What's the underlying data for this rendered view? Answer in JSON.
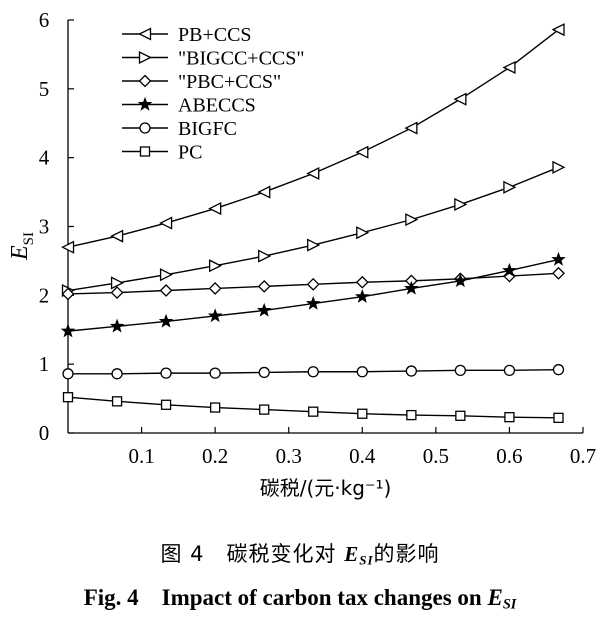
{
  "chart_data": {
    "type": "line",
    "xlabel": "碳税/(元·kg⁻¹)",
    "ylabel_symbol": "E",
    "ylabel_subscript": "SI",
    "xlim": [
      0,
      0.7
    ],
    "ylim": [
      0,
      6
    ],
    "xticks": [
      0.1,
      0.2,
      0.3,
      0.4,
      0.5,
      0.6,
      0.7
    ],
    "xtick_labels": [
      "0.1",
      "0.2",
      "0.3",
      "0.4",
      "0.5",
      "0.6",
      "0.7"
    ],
    "yticks": [
      0,
      1,
      2,
      3,
      4,
      5,
      6
    ],
    "ytick_labels": [
      "0",
      "1",
      "2",
      "3",
      "4",
      "5",
      "6"
    ],
    "grid": false,
    "legend_position": "top-left",
    "x": [
      0,
      0.0667,
      0.1333,
      0.2,
      0.2667,
      0.3333,
      0.4,
      0.4667,
      0.5333,
      0.6,
      0.6667
    ],
    "series": [
      {
        "name": "PB+CCS",
        "marker": "triangle-left",
        "values": [
          2.7,
          2.86,
          3.05,
          3.26,
          3.5,
          3.77,
          4.08,
          4.43,
          4.85,
          5.31,
          5.86
        ]
      },
      {
        "name": "\"BIGCC+CCS\"",
        "marker": "triangle-right",
        "values": [
          2.07,
          2.18,
          2.3,
          2.43,
          2.57,
          2.73,
          2.91,
          3.1,
          3.32,
          3.57,
          3.86
        ]
      },
      {
        "name": "\"PBC+CCS\"",
        "marker": "diamond",
        "values": [
          2.02,
          2.04,
          2.07,
          2.1,
          2.13,
          2.16,
          2.19,
          2.21,
          2.24,
          2.28,
          2.32
        ]
      },
      {
        "name": "ABECCS",
        "marker": "star",
        "values": [
          1.48,
          1.55,
          1.62,
          1.7,
          1.78,
          1.88,
          1.98,
          2.1,
          2.21,
          2.36,
          2.52
        ]
      },
      {
        "name": "BIGFC",
        "marker": "circle",
        "values": [
          0.86,
          0.86,
          0.87,
          0.87,
          0.88,
          0.89,
          0.89,
          0.9,
          0.91,
          0.91,
          0.92
        ]
      },
      {
        "name": "PC",
        "marker": "square",
        "values": [
          0.52,
          0.46,
          0.41,
          0.37,
          0.34,
          0.31,
          0.28,
          0.26,
          0.25,
          0.23,
          0.22
        ]
      }
    ]
  },
  "captions": {
    "cn_prefix": "图 4　碳税变化对 ",
    "cn_symbol": "E",
    "cn_subscript": "SI",
    "cn_suffix": "的影响",
    "en_prefix": "Fig. 4　Impact of carbon tax changes on ",
    "en_symbol": "E",
    "en_subscript": "SI"
  }
}
